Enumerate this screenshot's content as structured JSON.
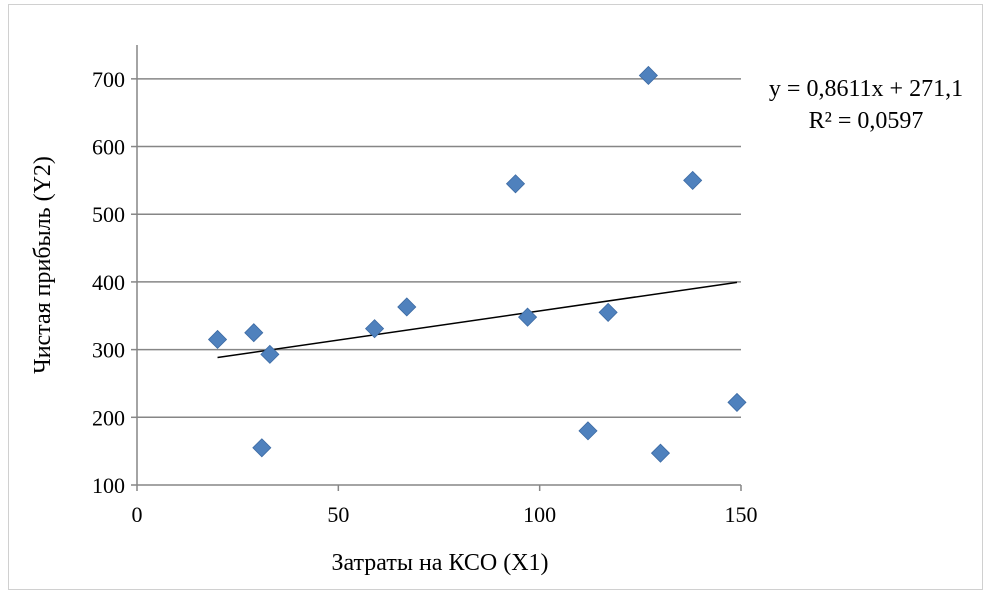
{
  "chart_data": {
    "type": "scatter",
    "xlabel": "Затраты на КСО (X1)",
    "ylabel": "Чистая прибыль (Y2)",
    "xlim": [
      0,
      150
    ],
    "ylim": [
      100,
      700
    ],
    "xticks": [
      "0",
      "50",
      "100",
      "150"
    ],
    "yticks": [
      "100",
      "200",
      "300",
      "400",
      "500",
      "600",
      "700"
    ],
    "grid": "horizontal",
    "marker_color": "#4f81bd",
    "points": [
      {
        "x": 20,
        "y": 315
      },
      {
        "x": 29,
        "y": 325
      },
      {
        "x": 31,
        "y": 155
      },
      {
        "x": 33,
        "y": 293
      },
      {
        "x": 59,
        "y": 331
      },
      {
        "x": 67,
        "y": 363
      },
      {
        "x": 94,
        "y": 545
      },
      {
        "x": 97,
        "y": 348
      },
      {
        "x": 112,
        "y": 180
      },
      {
        "x": 117,
        "y": 355
      },
      {
        "x": 127,
        "y": 705
      },
      {
        "x": 130,
        "y": 147
      },
      {
        "x": 138,
        "y": 550
      },
      {
        "x": 149,
        "y": 222
      }
    ],
    "trendline": {
      "type": "linear",
      "slope": 0.8611,
      "intercept": 271.1,
      "x_range": [
        20,
        149
      ],
      "equation": "y = 0,8611x + 271,1",
      "r_squared": "R² = 0,0597"
    }
  }
}
